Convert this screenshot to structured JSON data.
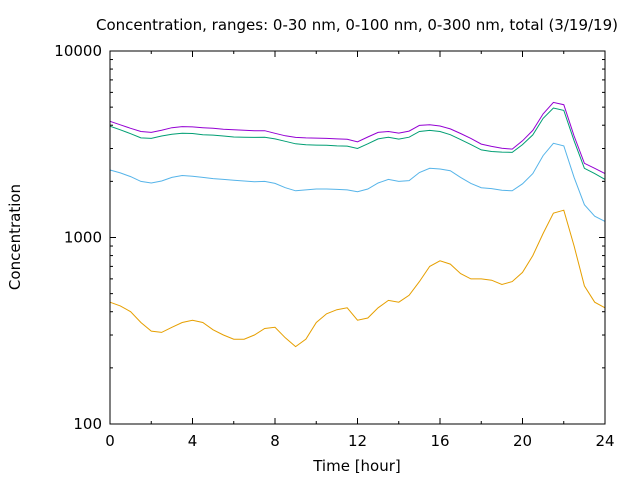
{
  "chart_data": {
    "type": "line",
    "title": "Concentration, ranges: 0-30 nm, 0-100 nm, 0-300 nm, total (3/19/19)",
    "xlabel": "Time [hour]",
    "ylabel": "Concentration",
    "xlim": [
      0,
      24
    ],
    "ylim": [
      100,
      10000
    ],
    "yscale": "log",
    "grid": false,
    "legend": "none",
    "xticks": [
      0,
      4,
      8,
      12,
      16,
      20,
      24
    ],
    "xtick_labels": [
      "0",
      "4",
      "8",
      "12",
      "16",
      "20",
      "24"
    ],
    "yticks": [
      100,
      1000,
      10000
    ],
    "ytick_labels": [
      "100",
      "1000",
      "10000"
    ],
    "x": [
      0,
      0.5,
      1,
      1.5,
      2,
      2.5,
      3,
      3.5,
      4,
      4.5,
      5,
      5.5,
      6,
      6.5,
      7,
      7.5,
      8,
      8.5,
      9,
      9.5,
      10,
      10.5,
      11,
      11.5,
      12,
      12.5,
      13,
      13.5,
      14,
      14.5,
      15,
      15.5,
      16,
      16.5,
      17,
      17.5,
      18,
      18.5,
      19,
      19.5,
      20,
      20.5,
      21,
      21.5,
      22,
      22.5,
      23,
      23.5,
      24
    ],
    "series": [
      {
        "color": "#e69f00",
        "values": [
          450,
          430,
          400,
          350,
          315,
          310,
          330,
          350,
          360,
          350,
          320,
          300,
          285,
          285,
          300,
          325,
          330,
          290,
          260,
          285,
          350,
          390,
          410,
          420,
          360,
          370,
          420,
          460,
          450,
          490,
          580,
          700,
          750,
          720,
          640,
          600,
          600,
          590,
          560,
          580,
          650,
          800,
          1050,
          1350,
          1400,
          900,
          550,
          450,
          420
        ]
      },
      {
        "color": "#56b4e9",
        "values": [
          2300,
          2220,
          2120,
          2000,
          1960,
          2010,
          2100,
          2150,
          2130,
          2100,
          2070,
          2050,
          2030,
          2010,
          1990,
          2000,
          1950,
          1850,
          1780,
          1800,
          1820,
          1820,
          1810,
          1800,
          1760,
          1820,
          1960,
          2050,
          2000,
          2020,
          2230,
          2350,
          2330,
          2280,
          2100,
          1950,
          1850,
          1830,
          1790,
          1780,
          1940,
          2200,
          2750,
          3200,
          3100,
          2100,
          1500,
          1300,
          1220
        ]
      },
      {
        "color": "#009e73",
        "values": [
          3950,
          3780,
          3600,
          3420,
          3400,
          3500,
          3580,
          3620,
          3610,
          3560,
          3540,
          3500,
          3460,
          3450,
          3440,
          3450,
          3380,
          3280,
          3180,
          3140,
          3130,
          3120,
          3100,
          3090,
          3000,
          3180,
          3380,
          3450,
          3370,
          3450,
          3700,
          3750,
          3700,
          3560,
          3350,
          3150,
          2950,
          2890,
          2870,
          2860,
          3150,
          3550,
          4350,
          4950,
          4800,
          3300,
          2350,
          2200,
          2050
        ]
      },
      {
        "color": "#9400d3",
        "values": [
          4200,
          4020,
          3850,
          3700,
          3660,
          3760,
          3880,
          3930,
          3920,
          3880,
          3850,
          3810,
          3780,
          3760,
          3740,
          3740,
          3620,
          3510,
          3440,
          3420,
          3410,
          3400,
          3380,
          3360,
          3260,
          3460,
          3660,
          3700,
          3630,
          3720,
          3990,
          4020,
          3960,
          3820,
          3610,
          3400,
          3170,
          3080,
          3010,
          2980,
          3300,
          3750,
          4600,
          5300,
          5150,
          3500,
          2500,
          2350,
          2200
        ]
      }
    ]
  }
}
